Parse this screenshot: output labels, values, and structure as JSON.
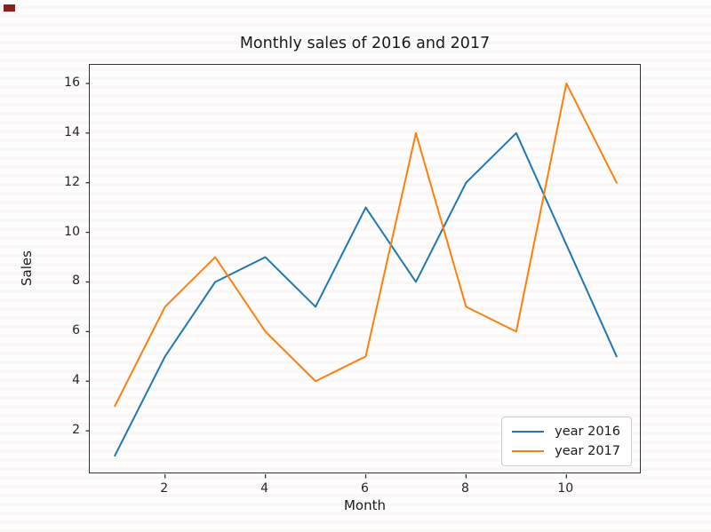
{
  "chart_data": {
    "type": "line",
    "title": "Monthly sales of 2016 and 2017",
    "xlabel": "Month",
    "ylabel": "Sales",
    "x": [
      1,
      2,
      3,
      4,
      5,
      6,
      7,
      8,
      9,
      10,
      11
    ],
    "series": [
      {
        "name": "year 2016",
        "color": "#1f77b4",
        "values": [
          1,
          5,
          8,
          9,
          7,
          11,
          8,
          12,
          14,
          9.5,
          5
        ]
      },
      {
        "name": "year 2017",
        "color": "#ff7f0e",
        "values": [
          3,
          7,
          9,
          6,
          4,
          5,
          14,
          7,
          6,
          16,
          12
        ]
      }
    ],
    "xlim": [
      0.5,
      11.5
    ],
    "ylim": [
      0.25,
      16.75
    ],
    "xticks": [
      2,
      4,
      6,
      8,
      10
    ],
    "yticks": [
      2,
      4,
      6,
      8,
      10,
      12,
      14,
      16
    ],
    "grid": false,
    "legend_position": "lower right",
    "legend_labels": [
      "year 2016",
      "year 2017"
    ]
  },
  "corner_mark": {
    "color": "#8b2020"
  },
  "style_colors": {
    "spine": "#333333",
    "tick": "#333333",
    "text": "#1a1a1a"
  }
}
